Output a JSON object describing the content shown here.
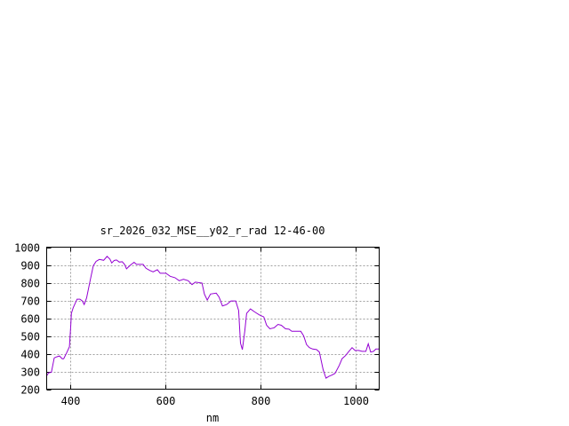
{
  "chart_data": {
    "type": "line",
    "title": "sr_2026_032_MSE__y02_r_rad 12-46-00",
    "xlabel": "nm",
    "ylabel": "",
    "xlim": [
      350,
      1050
    ],
    "ylim": [
      200,
      1000
    ],
    "xticks": [
      400,
      600,
      800,
      1000
    ],
    "yticks": [
      200,
      300,
      400,
      500,
      600,
      700,
      800,
      900,
      1000
    ],
    "grid": true,
    "series": [
      {
        "color": "#9400d3",
        "x": [
          350,
          354,
          360,
          366,
          371,
          377,
          383,
          386,
          392,
          398,
          401,
          402,
          406,
          414,
          420,
          425,
          429,
          434,
          442,
          448,
          454,
          461,
          470,
          477,
          483,
          487,
          492,
          497,
          503,
          509,
          514,
          518,
          526,
          534,
          539,
          553,
          559,
          567,
          574,
          583,
          589,
          601,
          610,
          620,
          629,
          638,
          648,
          656,
          663,
          677,
          682,
          688,
          695,
          707,
          713,
          720,
          729,
          738,
          748,
          754,
          758,
          762,
          767,
          771,
          779,
          788,
          798,
          807,
          813,
          820,
          829,
          837,
          844,
          853,
          860,
          866,
          875,
          885,
          891,
          897,
          903,
          910,
          918,
          924,
          932,
          938,
          944,
          950,
          957,
          966,
          972,
          979,
          985,
          993,
          999,
          1007,
          1014,
          1022,
          1027,
          1032,
          1038,
          1043,
          1050
        ],
        "y": [
          275,
          292,
          295,
          376,
          382,
          387,
          371,
          372,
          404,
          439,
          568,
          627,
          660,
          707,
          707,
          697,
          677,
          714,
          819,
          895,
          920,
          931,
          926,
          948,
          933,
          911,
          925,
          928,
          916,
          918,
          903,
          878,
          898,
          915,
          903,
          903,
          881,
          869,
          861,
          873,
          853,
          853,
          836,
          828,
          811,
          819,
          811,
          789,
          803,
          798,
          736,
          702,
          736,
          741,
          719,
          669,
          677,
          697,
          697,
          644,
          459,
          423,
          526,
          627,
          652,
          635,
          618,
          607,
          560,
          540,
          546,
          565,
          560,
          540,
          538,
          526,
          526,
          526,
          501,
          451,
          434,
          426,
          423,
          409,
          309,
          262,
          272,
          279,
          289,
          334,
          372,
          389,
          409,
          434,
          418,
          418,
          413,
          413,
          456,
          409,
          413,
          426,
          426
        ]
      }
    ]
  }
}
